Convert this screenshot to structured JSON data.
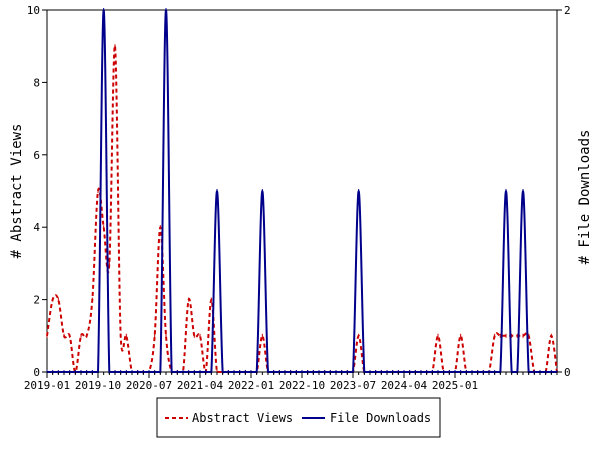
{
  "chart_data": {
    "type": "line",
    "x_ticks": [
      "2019-01",
      "2019-10",
      "2020-07",
      "2021-04",
      "2022-01",
      "2022-10",
      "2023-07",
      "2024-04",
      "2025-01"
    ],
    "x_start": "2019-01",
    "y_left": {
      "label": "# Abstract Views",
      "ylim": [
        0,
        10
      ],
      "ticks": [
        0,
        2,
        4,
        6,
        8,
        10
      ]
    },
    "y_right": {
      "label": "# File Downloads",
      "ylim": [
        0,
        2
      ],
      "ticks": [
        0,
        2
      ]
    },
    "legend_position": "bottom-center",
    "series": [
      {
        "name": "Abstract Views",
        "axis": "left",
        "color": "#cc0000",
        "dash": true,
        "values": [
          1,
          2,
          2,
          1,
          1,
          0,
          1,
          1,
          2,
          5,
          4,
          3,
          9,
          1,
          1,
          0,
          0,
          0,
          0,
          1,
          4,
          1,
          0,
          0,
          0,
          2,
          1,
          1,
          0,
          2,
          0,
          0,
          0,
          0,
          0,
          0,
          0,
          0,
          1,
          0,
          0,
          0,
          0,
          0,
          0,
          0,
          0,
          0,
          0,
          0,
          0,
          0,
          0,
          0,
          0,
          1,
          0,
          0,
          0,
          0,
          0,
          0,
          0,
          0,
          0,
          0,
          0,
          0,
          0,
          1,
          0,
          0,
          0,
          1,
          0,
          0,
          0,
          0,
          0,
          1,
          1,
          1,
          1,
          1,
          1,
          1,
          0,
          0,
          0,
          1,
          0
        ]
      },
      {
        "name": "File Downloads",
        "axis": "right",
        "color": "#00008b",
        "dash": false,
        "values": [
          0,
          0,
          0,
          0,
          0,
          0,
          0,
          0,
          0,
          0,
          2,
          0,
          0,
          0,
          0,
          0,
          0,
          0,
          0,
          0,
          0,
          2,
          0,
          0,
          0,
          0,
          0,
          0,
          0,
          0,
          1,
          0,
          0,
          0,
          0,
          0,
          0,
          0,
          1,
          0,
          0,
          0,
          0,
          0,
          0,
          0,
          0,
          0,
          0,
          0,
          0,
          0,
          0,
          0,
          0,
          1,
          0,
          0,
          0,
          0,
          0,
          0,
          0,
          0,
          0,
          0,
          0,
          0,
          0,
          0,
          0,
          0,
          0,
          0,
          0,
          0,
          0,
          0,
          0,
          0,
          0,
          1,
          0,
          0,
          1,
          0,
          0,
          0,
          0,
          0,
          0
        ]
      }
    ]
  }
}
